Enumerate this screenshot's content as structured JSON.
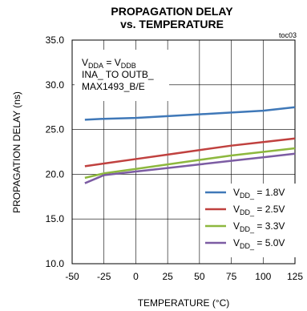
{
  "chart_data": {
    "type": "line",
    "title": [
      "PROPAGATION DELAY",
      "vs. TEMPERATURE"
    ],
    "figure_id": "toc03",
    "xlabel": "TEMPERATURE (°C)",
    "ylabel": "PROPAGATION DELAY (ns)",
    "xlim": [
      -50,
      125
    ],
    "ylim": [
      10,
      35
    ],
    "xticks": [
      -50,
      -25,
      0,
      25,
      50,
      75,
      100,
      125
    ],
    "yticks": [
      10.0,
      15.0,
      20.0,
      25.0,
      30.0,
      35.0
    ],
    "grid": true,
    "conditions": {
      "line1": {
        "base": "V",
        "sub1": "DDA",
        "mid": " = V",
        "sub2": "DDB"
      },
      "line2": "INA_ TO OUTB_",
      "line3": "MAX1493_B/E"
    },
    "legend_position": "bottom-right",
    "series": [
      {
        "name": "VDD_ = 1.8V",
        "legend_sub": "DD_",
        "legend_value": " = 1.8V",
        "color": "#3f78b8",
        "x": [
          -40,
          -25,
          0,
          25,
          50,
          75,
          100,
          125
        ],
        "y": [
          26.1,
          26.2,
          26.3,
          26.5,
          26.7,
          26.9,
          27.1,
          27.5
        ]
      },
      {
        "name": "VDD_ = 2.5V",
        "legend_sub": "DD_",
        "legend_value": " = 2.5V",
        "color": "#c0413f",
        "x": [
          -40,
          -25,
          0,
          25,
          50,
          75,
          100,
          125
        ],
        "y": [
          20.9,
          21.2,
          21.7,
          22.2,
          22.7,
          23.2,
          23.6,
          24.0
        ]
      },
      {
        "name": "VDD_ = 3.3V",
        "legend_sub": "DD_",
        "legend_value": " = 3.3V",
        "color": "#8db83e",
        "x": [
          -40,
          -25,
          0,
          25,
          50,
          75,
          100,
          125
        ],
        "y": [
          19.6,
          20.1,
          20.6,
          21.1,
          21.6,
          22.1,
          22.5,
          22.9
        ]
      },
      {
        "name": "VDD_ = 5.0V",
        "legend_sub": "DD_",
        "legend_value": " = 5.0V",
        "color": "#7c5ca3",
        "x": [
          -40,
          -25,
          0,
          25,
          50,
          75,
          100,
          125
        ],
        "y": [
          19.0,
          19.9,
          20.3,
          20.7,
          21.1,
          21.5,
          21.9,
          22.3
        ]
      }
    ]
  }
}
